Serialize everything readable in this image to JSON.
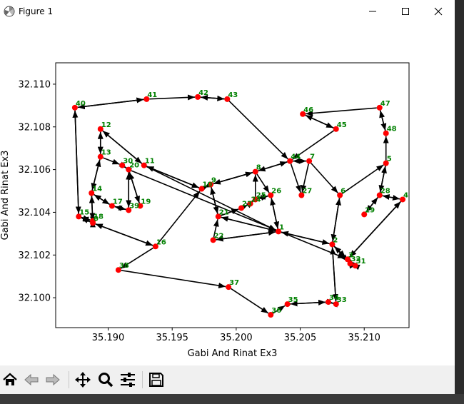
{
  "window": {
    "title": "Figure 1"
  },
  "colors": {
    "arrow": "#000000",
    "point": "#ff0000",
    "label": "#008000",
    "axes": "#000000"
  },
  "toolbar": {
    "buttons": [
      {
        "name": "home-button",
        "icon": "home-icon"
      },
      {
        "name": "back-button",
        "icon": "back-arrow-icon"
      },
      {
        "name": "forward-button",
        "icon": "forward-arrow-icon"
      },
      {
        "name": "pan-button",
        "icon": "move-icon"
      },
      {
        "name": "zoom-button",
        "icon": "magnifier-icon"
      },
      {
        "name": "configure-subplots-button",
        "icon": "sliders-icon"
      },
      {
        "name": "save-button",
        "icon": "floppy-disk-icon"
      }
    ]
  },
  "chart_data": {
    "type": "scatter",
    "title": "",
    "xlabel": "Gabi And Rinat Ex3",
    "ylabel": "Gabi And Rinat Ex3",
    "xlim": [
      35.1859,
      35.2135
    ],
    "ylim": [
      32.0986,
      32.111
    ],
    "xticks": [
      35.19,
      35.195,
      35.2,
      35.205,
      35.21
    ],
    "xtick_labels": [
      "35.190",
      "35.195",
      "35.200",
      "35.205",
      "35.210"
    ],
    "yticks": [
      32.1,
      32.102,
      32.104,
      32.106,
      32.108,
      32.11
    ],
    "ytick_labels": [
      "32.100",
      "32.102",
      "32.104",
      "32.106",
      "32.108",
      "32.110"
    ],
    "grid": false,
    "nodes": [
      {
        "id": 0,
        "x": 35.1888,
        "y": 32.1035
      },
      {
        "id": 1,
        "x": 35.2033,
        "y": 32.1031
      },
      {
        "id": 2,
        "x": 35.2075,
        "y": 32.1025
      },
      {
        "id": 3,
        "x": 35.2087,
        "y": 32.1018
      },
      {
        "id": 4,
        "x": 35.213,
        "y": 32.1046
      },
      {
        "id": 5,
        "x": 35.2117,
        "y": 32.1063
      },
      {
        "id": 6,
        "x": 35.2081,
        "y": 32.1048
      },
      {
        "id": 7,
        "x": 35.2057,
        "y": 32.1064
      },
      {
        "id": 8,
        "x": 35.2015,
        "y": 32.1059
      },
      {
        "id": 9,
        "x": 35.198,
        "y": 32.1053
      },
      {
        "id": 10,
        "x": 35.1973,
        "y": 32.1051
      },
      {
        "id": 11,
        "x": 35.1928,
        "y": 32.1062
      },
      {
        "id": 12,
        "x": 35.1894,
        "y": 32.1079
      },
      {
        "id": 13,
        "x": 35.1894,
        "y": 32.1066
      },
      {
        "id": 14,
        "x": 35.1887,
        "y": 32.1049
      },
      {
        "id": 15,
        "x": 35.1877,
        "y": 32.1038
      },
      {
        "id": 16,
        "x": 35.1937,
        "y": 32.1024
      },
      {
        "id": 17,
        "x": 35.1903,
        "y": 32.1043
      },
      {
        "id": 18,
        "x": 35.1888,
        "y": 32.1036
      },
      {
        "id": 19,
        "x": 35.1925,
        "y": 32.1043
      },
      {
        "id": 20,
        "x": 35.1916,
        "y": 32.106
      },
      {
        "id": 21,
        "x": 35.1986,
        "y": 32.1038
      },
      {
        "id": 22,
        "x": 35.1982,
        "y": 32.1027
      },
      {
        "id": 23,
        "x": 35.2004,
        "y": 32.1042
      },
      {
        "id": 24,
        "x": 35.2011,
        "y": 32.1044
      },
      {
        "id": 25,
        "x": 35.2015,
        "y": 32.1046
      },
      {
        "id": 26,
        "x": 35.2027,
        "y": 32.1048
      },
      {
        "id": 27,
        "x": 35.2051,
        "y": 32.1048
      },
      {
        "id": 28,
        "x": 35.2112,
        "y": 32.1048
      },
      {
        "id": 29,
        "x": 35.21,
        "y": 32.1039
      },
      {
        "id": 30,
        "x": 35.1911,
        "y": 32.1062
      },
      {
        "id": 31,
        "x": 35.2093,
        "y": 32.1015
      },
      {
        "id": 32,
        "x": 35.2089,
        "y": 32.1016
      },
      {
        "id": 33,
        "x": 35.2078,
        "y": 32.0997
      },
      {
        "id": 34,
        "x": 35.2072,
        "y": 32.0998
      },
      {
        "id": 35,
        "x": 35.204,
        "y": 32.0997
      },
      {
        "id": 36,
        "x": 35.2027,
        "y": 32.0992
      },
      {
        "id": 37,
        "x": 35.1994,
        "y": 32.1005
      },
      {
        "id": 38,
        "x": 35.1908,
        "y": 32.1013
      },
      {
        "id": 39,
        "x": 35.1916,
        "y": 32.1041
      },
      {
        "id": 40,
        "x": 35.1874,
        "y": 32.1089
      },
      {
        "id": 41,
        "x": 35.193,
        "y": 32.1093
      },
      {
        "id": 42,
        "x": 35.197,
        "y": 32.1094
      },
      {
        "id": 43,
        "x": 35.1993,
        "y": 32.1093
      },
      {
        "id": 44,
        "x": 35.2042,
        "y": 32.1064
      },
      {
        "id": 45,
        "x": 35.2078,
        "y": 32.1079
      },
      {
        "id": 46,
        "x": 35.2052,
        "y": 32.1086
      },
      {
        "id": 47,
        "x": 35.2112,
        "y": 32.1089
      },
      {
        "id": 48,
        "x": 35.2117,
        "y": 32.1077
      }
    ],
    "edges": [
      [
        40,
        41
      ],
      [
        41,
        40
      ],
      [
        41,
        42
      ],
      [
        42,
        43
      ],
      [
        43,
        42
      ],
      [
        43,
        44
      ],
      [
        44,
        7
      ],
      [
        7,
        44
      ],
      [
        44,
        27
      ],
      [
        7,
        27
      ],
      [
        7,
        6
      ],
      [
        6,
        2
      ],
      [
        2,
        6
      ],
      [
        6,
        5
      ],
      [
        5,
        28
      ],
      [
        28,
        5
      ],
      [
        28,
        4
      ],
      [
        4,
        28
      ],
      [
        29,
        28
      ],
      [
        28,
        29
      ],
      [
        5,
        48
      ],
      [
        48,
        47
      ],
      [
        47,
        48
      ],
      [
        47,
        46
      ],
      [
        46,
        45
      ],
      [
        45,
        46
      ],
      [
        45,
        44
      ],
      [
        44,
        8
      ],
      [
        8,
        44
      ],
      [
        8,
        9
      ],
      [
        9,
        8
      ],
      [
        10,
        11
      ],
      [
        11,
        10
      ],
      [
        11,
        12
      ],
      [
        12,
        11
      ],
      [
        12,
        13
      ],
      [
        13,
        12
      ],
      [
        13,
        14
      ],
      [
        14,
        13
      ],
      [
        13,
        30
      ],
      [
        30,
        20
      ],
      [
        20,
        30
      ],
      [
        20,
        39
      ],
      [
        39,
        20
      ],
      [
        19,
        20
      ],
      [
        20,
        19
      ],
      [
        39,
        17
      ],
      [
        17,
        39
      ],
      [
        17,
        14
      ],
      [
        14,
        17
      ],
      [
        14,
        0
      ],
      [
        0,
        14
      ],
      [
        15,
        0
      ],
      [
        0,
        15
      ],
      [
        15,
        40
      ],
      [
        40,
        15
      ],
      [
        0,
        16
      ],
      [
        16,
        0
      ],
      [
        16,
        10
      ],
      [
        10,
        9
      ],
      [
        9,
        10
      ],
      [
        9,
        21
      ],
      [
        21,
        9
      ],
      [
        21,
        23
      ],
      [
        23,
        24
      ],
      [
        24,
        25
      ],
      [
        25,
        26
      ],
      [
        26,
        25
      ],
      [
        25,
        8
      ],
      [
        8,
        26
      ],
      [
        26,
        1
      ],
      [
        1,
        26
      ],
      [
        1,
        21
      ],
      [
        21,
        1
      ],
      [
        1,
        2
      ],
      [
        2,
        1
      ],
      [
        1,
        22
      ],
      [
        22,
        1
      ],
      [
        22,
        21
      ],
      [
        16,
        38
      ],
      [
        38,
        37
      ],
      [
        37,
        36
      ],
      [
        36,
        35
      ],
      [
        35,
        34
      ],
      [
        34,
        35
      ],
      [
        34,
        33
      ],
      [
        33,
        34
      ],
      [
        33,
        2
      ],
      [
        2,
        33
      ],
      [
        2,
        32
      ],
      [
        32,
        31
      ],
      [
        31,
        3
      ],
      [
        3,
        31
      ],
      [
        3,
        32
      ],
      [
        3,
        4
      ],
      [
        4,
        3
      ],
      [
        3,
        2
      ],
      [
        20,
        3
      ],
      [
        18,
        0
      ],
      [
        0,
        18
      ],
      [
        15,
        18
      ],
      [
        18,
        15
      ],
      [
        11,
        1
      ],
      [
        2,
        3
      ]
    ]
  }
}
